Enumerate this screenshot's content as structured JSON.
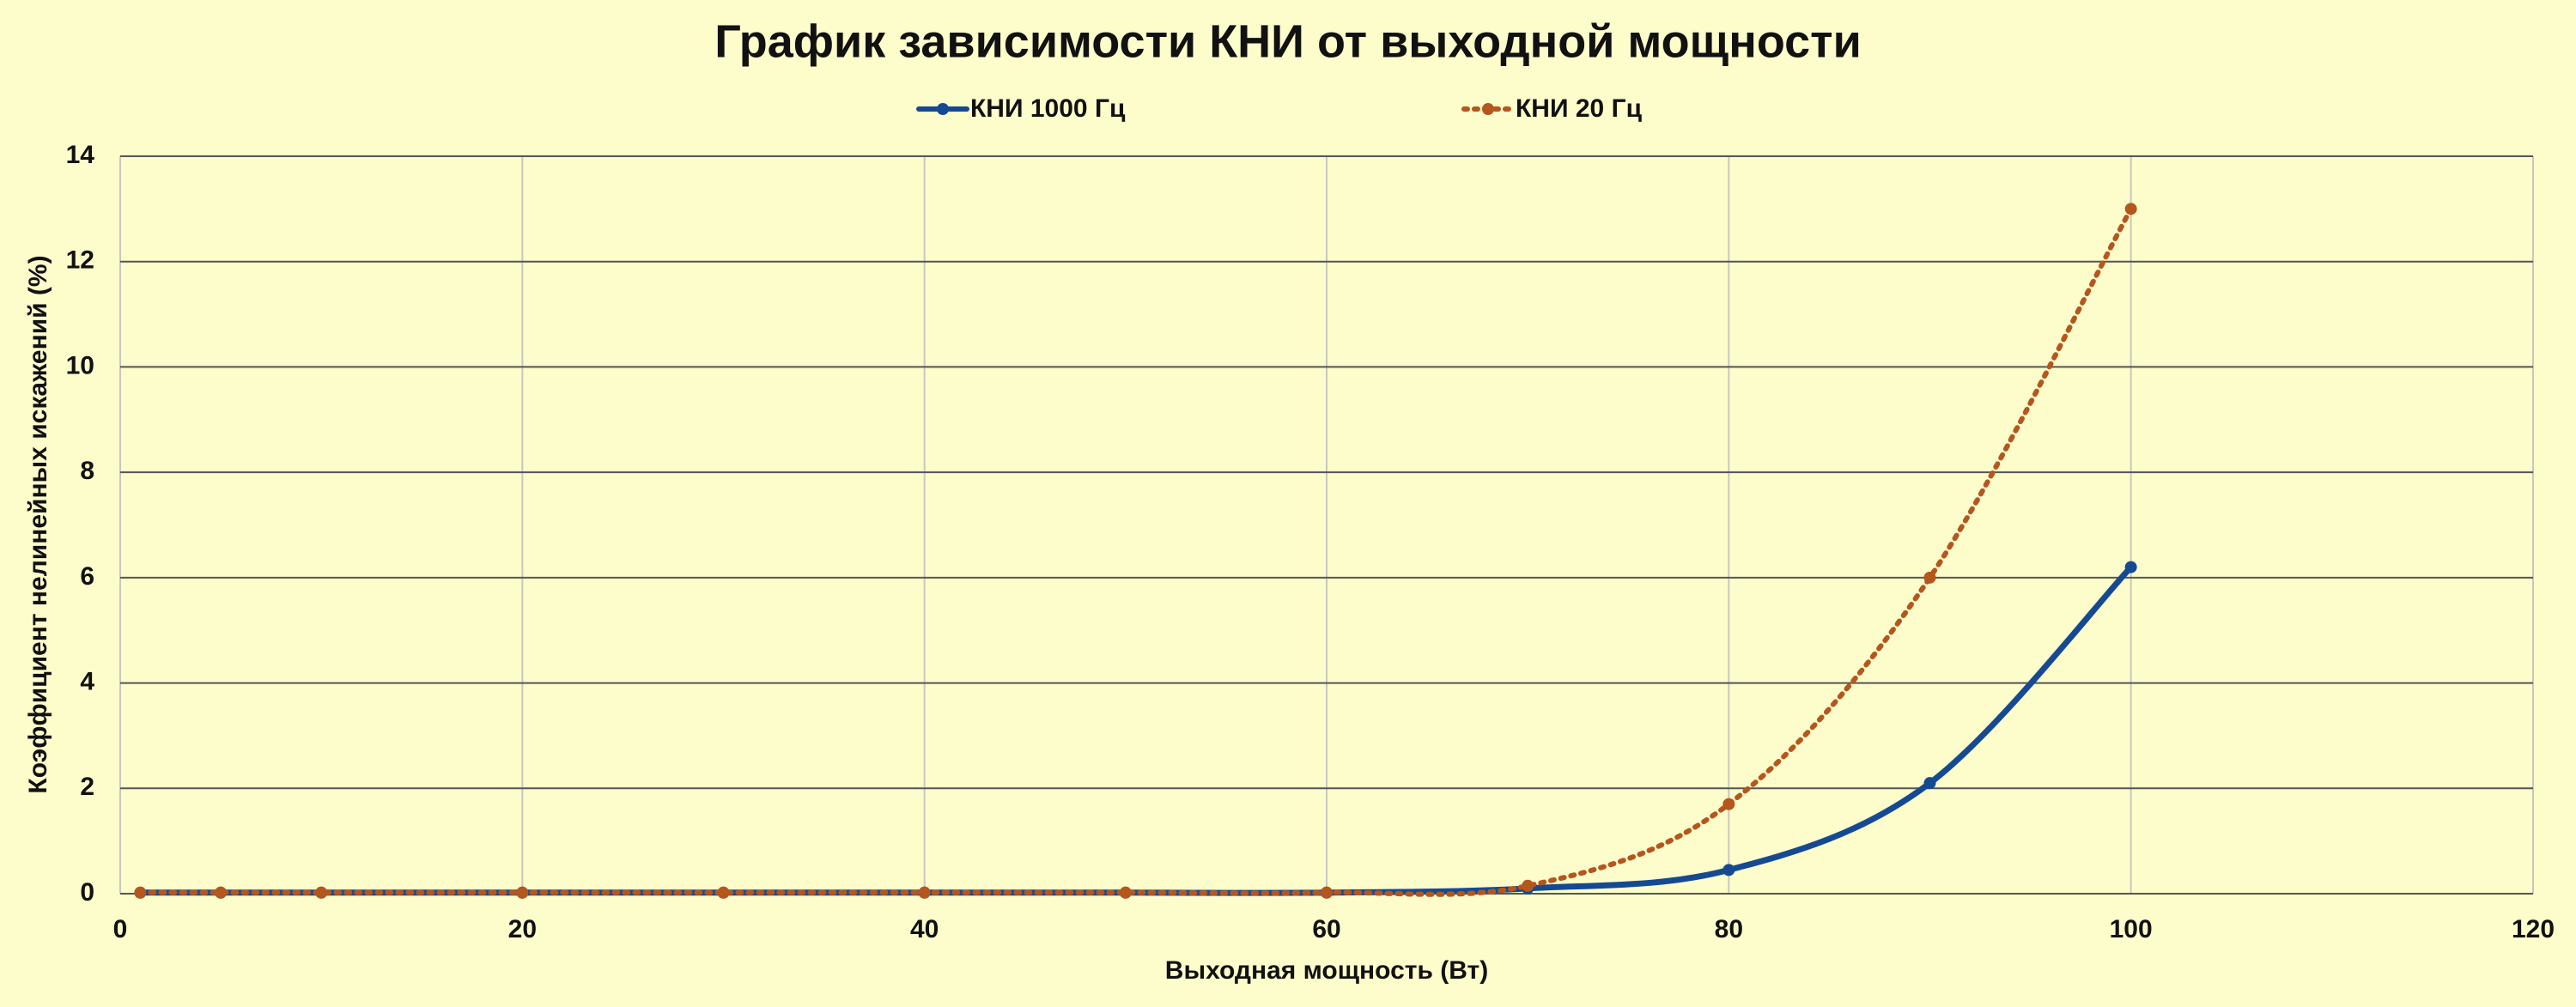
{
  "chart_data": {
    "type": "line",
    "title": "График зависимости КНИ от выходной мощности",
    "x_label": "Выходная мощность (Вт)",
    "y_label": "Коэффициент нелинейных искажений (%)",
    "x": [
      1,
      5,
      10,
      20,
      30,
      40,
      50,
      60,
      70,
      80,
      90,
      100
    ],
    "series": [
      {
        "name": "КНИ 1000 Гц",
        "color": "#154a93",
        "style": "solid",
        "values": [
          0.02,
          0.02,
          0.02,
          0.02,
          0.02,
          0.02,
          0.02,
          0.02,
          0.1,
          0.45,
          2.1,
          6.2
        ]
      },
      {
        "name": "КНИ 20 Гц",
        "color": "#b5561d",
        "style": "dotted",
        "values": [
          0.02,
          0.02,
          0.02,
          0.02,
          0.02,
          0.02,
          0.02,
          0.02,
          0.15,
          1.7,
          6.0,
          13.0
        ]
      }
    ],
    "xlim": [
      0,
      120
    ],
    "xticks": [
      0,
      20,
      40,
      60,
      80,
      100,
      120
    ],
    "ylim": [
      0,
      14
    ],
    "yticks": [
      0,
      2,
      4,
      6,
      8,
      10,
      12,
      14
    ],
    "grid": true,
    "legend": "top",
    "smooth": true
  }
}
